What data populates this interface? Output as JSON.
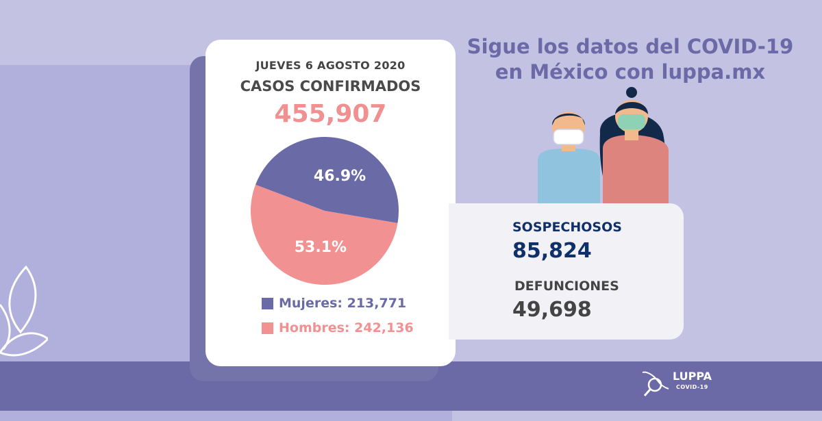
{
  "date": "JUEVES 6 AGOSTO 2020",
  "confirmed": {
    "label": "CASOS CONFIRMADOS",
    "value": "455,907"
  },
  "chart_data": {
    "type": "pie",
    "categories": [
      "Mujeres",
      "Hombres"
    ],
    "values": [
      46.9,
      53.1
    ],
    "labels": [
      "46.9%",
      "53.1%"
    ],
    "colors": [
      "#6a6aa7",
      "#f29191"
    ]
  },
  "legend": {
    "mujeres": "Mujeres: 213,771",
    "hombres": "Hombres: 242,136"
  },
  "headline": {
    "line1": "Sigue los datos del COVID-19",
    "line2": "en México con luppa.mx"
  },
  "stats": {
    "sospechosos_label": "SOSPECHOSOS",
    "sospechosos_value": "85,824",
    "defunciones_label": "DEFUNCIONES",
    "defunciones_value": "49,698"
  },
  "logo": {
    "name": "LUPPA",
    "sub": "COVID-19"
  }
}
